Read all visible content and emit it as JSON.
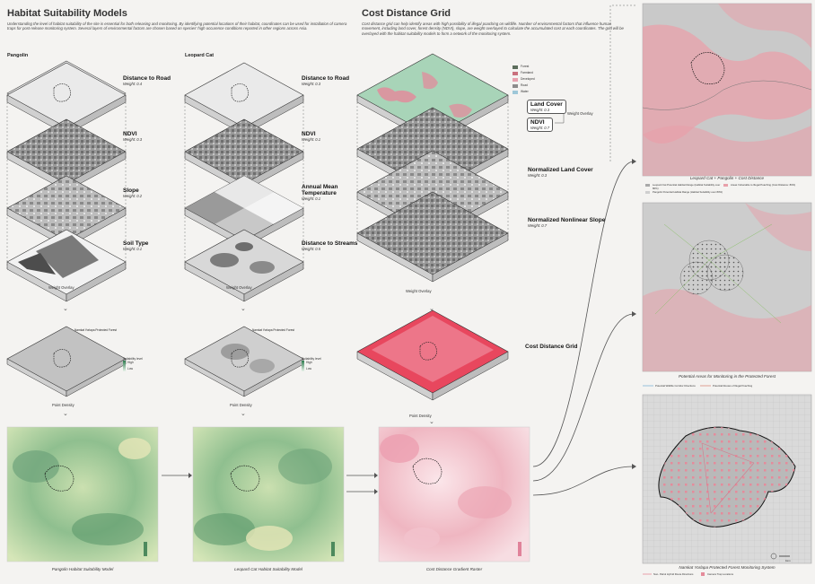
{
  "header": {
    "hsm_title": "Habitat Suitability Models",
    "hsm_intro": "Understanding the level of habitat suitability of the site is essential for both releasing and monitoring. By identifying potential locations of their habitat, coordinates can be used for installation of camera traps for post-release monitoring system. Several layers of environmental factors are chosen based on species' high occurence conditions reported in other regions across Asia.",
    "cdg_title": "Cost Distance Grid",
    "cdg_intro": "Cost distance grid can help identify areas with high possibility of illegal poaching on wildlife. Number of environmental factors that influence human movement, including land cover, forest density (NDVI), slope, are weight overlayed to calculate the accumulated cost at each coordinates. The grid will be overlayed with the habitat suitability models to form a network of the monitoring system."
  },
  "columns": {
    "pangolin": "Pangolin",
    "leopard": "Leopard Cat"
  },
  "pangolin_layers": [
    {
      "title": "Distance to Road",
      "weight": "Weight: 0.4"
    },
    {
      "title": "NDVI",
      "weight": "Weight: 0.3"
    },
    {
      "title": "Slope",
      "weight": "Weight: 0.2"
    },
    {
      "title": "Soil Type",
      "weight": "Weight: 0.1"
    }
  ],
  "leopard_layers": [
    {
      "title": "Distance to Road",
      "weight": "Weight: 0.3"
    },
    {
      "title": "NDVI",
      "weight": "Weight: 0.1"
    },
    {
      "title": "Annual Mean Temperature",
      "weight": "Weight: 0.1"
    },
    {
      "title": "Distance to Streams",
      "weight": "Weight: 0.5"
    }
  ],
  "cost_layers": [
    {
      "title": "Land Cover",
      "weight": "Weight: 0.3"
    },
    {
      "title": "NDVI",
      "weight": "Weight: 0.7"
    },
    {
      "title": "Normalized Land Cover",
      "weight": "Weight: 0.3"
    },
    {
      "title": "Normalized Nonlinear Slope",
      "weight": "Weight: 0.7"
    }
  ],
  "landcover_legend": [
    "Forest",
    "Farmland",
    "Developed",
    "Road",
    "Water"
  ],
  "labels": {
    "weight_overlay": "Weight Overlay",
    "point_density": "Point Density",
    "cost_grid_title": "Cost Distance Grid",
    "nyaipa": "Namkat Yorlapa Protected Forest",
    "suitability_level": "Suitability level",
    "high": "High",
    "low": "Low",
    "weight_overlay_side": "Weight Overlay",
    "scale": "1km"
  },
  "captions": {
    "pangolin_model": "Pangolin Habitat Suitability Model",
    "leopard_model": "Leopard Cat Habitat Suitability Model",
    "cost_raster": "Cost Distance Gradient Raster",
    "right1": "Leopard Cat + Pangolin + Cost Distance",
    "right2": "Potential Areas for Monitoring in the Protected Forest",
    "right3": "Namkat Yorlapa Protected Forest Monitoring System"
  },
  "right_legends": {
    "r1": [
      "Leopard Cat Potential Habitat Range (Habitat Suitability over 80%)",
      "Pangolin Potential Habitat Range (Habitat Suitability over 80%)",
      "Areas Vulnerable to Illegal Poaching (Cost Distance: 80%)"
    ],
    "r2": [
      "Potential Wildlife Corridor Directions",
      "Potential Routes of Illegal Poaching"
    ],
    "r3": [
      "Non- Patrol Hybrid Route Directions",
      "Camera Trap Locations"
    ]
  },
  "colors": {
    "green_dark": "#5b9a67",
    "green_light": "#d9e6b6",
    "pink": "#e7879a",
    "red": "#d92a45",
    "gray": "#8f8f8f"
  }
}
